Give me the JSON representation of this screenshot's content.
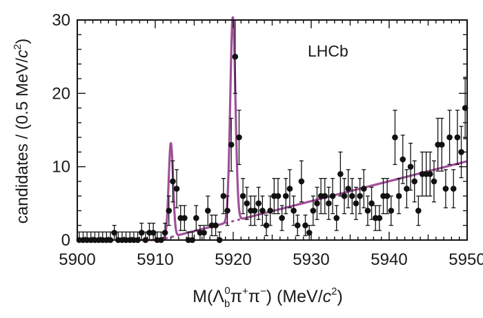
{
  "chart_data": {
    "type": "scatter",
    "annotation": "LHCb",
    "xlabel": {
      "prefix": "M(Λ",
      "sub": "b",
      "sup0": "0",
      "mid": "π",
      "sup_plus": "+",
      "mid2": "π",
      "sup_minus": "−",
      "units": ") (MeV/",
      "unit_c": "c",
      "unit_sup": "2",
      "close": ")"
    },
    "ylabel": {
      "text": "candidates / (0.5 MeV/",
      "c": "c",
      "sup": "2",
      "close": ")"
    },
    "xlim": [
      5900,
      5950
    ],
    "ylim": [
      0,
      30
    ],
    "x_ticks": [
      5900,
      5910,
      5920,
      5930,
      5940,
      5950
    ],
    "y_ticks": [
      0,
      10,
      20,
      30
    ],
    "grid": false,
    "colors": {
      "data": "#111111",
      "fit": "#a0509a",
      "axis": "#111111"
    },
    "series": [
      {
        "kind": "data",
        "points": [
          {
            "x": 5900.25,
            "y": 0,
            "err": 1.1
          },
          {
            "x": 5900.75,
            "y": 0,
            "err": 1.1
          },
          {
            "x": 5901.25,
            "y": 0,
            "err": 1.1
          },
          {
            "x": 5901.75,
            "y": 0,
            "err": 1.1
          },
          {
            "x": 5902.25,
            "y": 0,
            "err": 1.1
          },
          {
            "x": 5902.75,
            "y": 0,
            "err": 1.1
          },
          {
            "x": 5903.25,
            "y": 0,
            "err": 1.1
          },
          {
            "x": 5903.75,
            "y": 0,
            "err": 1.1
          },
          {
            "x": 5904.25,
            "y": 0,
            "err": 1.1
          },
          {
            "x": 5904.75,
            "y": 1,
            "err": 1.0
          },
          {
            "x": 5905.25,
            "y": 0,
            "err": 1.1
          },
          {
            "x": 5905.75,
            "y": 0,
            "err": 1.1
          },
          {
            "x": 5906.25,
            "y": 0,
            "err": 1.1
          },
          {
            "x": 5906.75,
            "y": 0,
            "err": 1.1
          },
          {
            "x": 5907.25,
            "y": 0,
            "err": 1.1
          },
          {
            "x": 5907.75,
            "y": 0,
            "err": 1.1
          },
          {
            "x": 5908.25,
            "y": 1,
            "err": 1.3
          },
          {
            "x": 5908.75,
            "y": 0,
            "err": 1.1
          },
          {
            "x": 5909.25,
            "y": 1,
            "err": 1.3
          },
          {
            "x": 5909.75,
            "y": 1,
            "err": 1.3
          },
          {
            "x": 5910.25,
            "y": 0,
            "err": 1.1
          },
          {
            "x": 5910.75,
            "y": 0,
            "err": 1.1
          },
          {
            "x": 5911.25,
            "y": 1,
            "err": 1.3
          },
          {
            "x": 5911.75,
            "y": 4,
            "err": 2.0
          },
          {
            "x": 5912.25,
            "y": 8,
            "err": 2.8
          },
          {
            "x": 5912.75,
            "y": 7,
            "err": 2.6
          },
          {
            "x": 5913.25,
            "y": 3,
            "err": 1.7
          },
          {
            "x": 5913.75,
            "y": 3,
            "err": 1.7
          },
          {
            "x": 5914.25,
            "y": 0,
            "err": 1.1
          },
          {
            "x": 5914.75,
            "y": 0,
            "err": 1.1
          },
          {
            "x": 5915.25,
            "y": 3,
            "err": 1.7
          },
          {
            "x": 5915.75,
            "y": 1,
            "err": 1.0
          },
          {
            "x": 5916.25,
            "y": 1,
            "err": 1.0
          },
          {
            "x": 5916.75,
            "y": 4,
            "err": 2.0
          },
          {
            "x": 5917.25,
            "y": 2,
            "err": 1.4
          },
          {
            "x": 5917.75,
            "y": 2,
            "err": 1.4
          },
          {
            "x": 5918.25,
            "y": 0,
            "err": 1.1
          },
          {
            "x": 5918.75,
            "y": 6,
            "err": 2.4
          },
          {
            "x": 5919.25,
            "y": 4,
            "err": 2.0
          },
          {
            "x": 5919.75,
            "y": 13,
            "err": 3.6
          },
          {
            "x": 5920.25,
            "y": 25,
            "err": 5.0
          },
          {
            "x": 5920.75,
            "y": 14,
            "err": 3.7
          },
          {
            "x": 5921.25,
            "y": 6,
            "err": 2.4
          },
          {
            "x": 5921.75,
            "y": 5,
            "err": 2.2
          },
          {
            "x": 5922.25,
            "y": 4,
            "err": 2.0
          },
          {
            "x": 5922.75,
            "y": 4,
            "err": 2.0
          },
          {
            "x": 5923.25,
            "y": 5,
            "err": 2.2
          },
          {
            "x": 5923.75,
            "y": 4,
            "err": 2.0
          },
          {
            "x": 5924.25,
            "y": 2,
            "err": 1.4
          },
          {
            "x": 5924.75,
            "y": 4,
            "err": 2.0
          },
          {
            "x": 5925.25,
            "y": 6,
            "err": 2.4
          },
          {
            "x": 5925.75,
            "y": 6,
            "err": 2.4
          },
          {
            "x": 5926.25,
            "y": 3,
            "err": 1.7
          },
          {
            "x": 5926.75,
            "y": 6,
            "err": 2.4
          },
          {
            "x": 5927.25,
            "y": 7,
            "err": 2.6
          },
          {
            "x": 5927.75,
            "y": 4,
            "err": 2.0
          },
          {
            "x": 5928.25,
            "y": 2,
            "err": 1.4
          },
          {
            "x": 5928.75,
            "y": 8,
            "err": 2.8
          },
          {
            "x": 5929.25,
            "y": 2,
            "err": 1.4
          },
          {
            "x": 5929.75,
            "y": 1,
            "err": 1.0
          },
          {
            "x": 5930.25,
            "y": 4,
            "err": 2.0
          },
          {
            "x": 5930.75,
            "y": 5,
            "err": 2.2
          },
          {
            "x": 5931.25,
            "y": 6,
            "err": 2.4
          },
          {
            "x": 5931.75,
            "y": 6,
            "err": 2.4
          },
          {
            "x": 5932.25,
            "y": 5,
            "err": 2.2
          },
          {
            "x": 5932.75,
            "y": 6,
            "err": 2.4
          },
          {
            "x": 5933.25,
            "y": 3,
            "err": 1.7
          },
          {
            "x": 5933.75,
            "y": 9,
            "err": 3.0
          },
          {
            "x": 5934.25,
            "y": 6,
            "err": 2.4
          },
          {
            "x": 5934.75,
            "y": 7,
            "err": 2.6
          },
          {
            "x": 5935.25,
            "y": 6,
            "err": 2.4
          },
          {
            "x": 5935.75,
            "y": 5,
            "err": 2.2
          },
          {
            "x": 5936.25,
            "y": 6,
            "err": 2.4
          },
          {
            "x": 5936.75,
            "y": 7,
            "err": 2.6
          },
          {
            "x": 5937.25,
            "y": 4,
            "err": 2.0
          },
          {
            "x": 5937.75,
            "y": 5,
            "err": 2.2
          },
          {
            "x": 5938.25,
            "y": 3,
            "err": 1.7
          },
          {
            "x": 5938.75,
            "y": 3,
            "err": 1.7
          },
          {
            "x": 5939.25,
            "y": 6,
            "err": 2.4
          },
          {
            "x": 5939.75,
            "y": 6,
            "err": 2.4
          },
          {
            "x": 5940.25,
            "y": 4,
            "err": 2.0
          },
          {
            "x": 5940.75,
            "y": 14,
            "err": 3.7
          },
          {
            "x": 5941.25,
            "y": 6,
            "err": 2.4
          },
          {
            "x": 5941.75,
            "y": 11,
            "err": 3.3
          },
          {
            "x": 5942.25,
            "y": 7,
            "err": 2.6
          },
          {
            "x": 5942.75,
            "y": 10,
            "err": 3.2
          },
          {
            "x": 5943.25,
            "y": 8,
            "err": 2.8
          },
          {
            "x": 5943.75,
            "y": 4,
            "err": 2.0
          },
          {
            "x": 5944.25,
            "y": 9,
            "err": 3.0
          },
          {
            "x": 5944.75,
            "y": 9,
            "err": 3.0
          },
          {
            "x": 5945.25,
            "y": 9,
            "err": 3.0
          },
          {
            "x": 5945.75,
            "y": 8,
            "err": 2.8
          },
          {
            "x": 5946.25,
            "y": 13,
            "err": 3.6
          },
          {
            "x": 5946.75,
            "y": 13,
            "err": 3.6
          },
          {
            "x": 5947.25,
            "y": 7,
            "err": 2.6
          },
          {
            "x": 5947.75,
            "y": 14,
            "err": 3.7
          },
          {
            "x": 5948.25,
            "y": 7,
            "err": 2.6
          },
          {
            "x": 5948.75,
            "y": 14,
            "err": 3.7
          },
          {
            "x": 5949.25,
            "y": 12,
            "err": 3.5
          },
          {
            "x": 5949.75,
            "y": 18,
            "err": 4.2
          }
        ]
      },
      {
        "kind": "fit",
        "background": {
          "threshold": 5910.5,
          "slope_per_mev": 0.272
        },
        "peaks": [
          {
            "mean": 5912.0,
            "sigma": 0.28,
            "amplitude": 12.8
          },
          {
            "mean": 5919.95,
            "sigma": 0.33,
            "amplitude": 27.8
          }
        ]
      }
    ]
  }
}
